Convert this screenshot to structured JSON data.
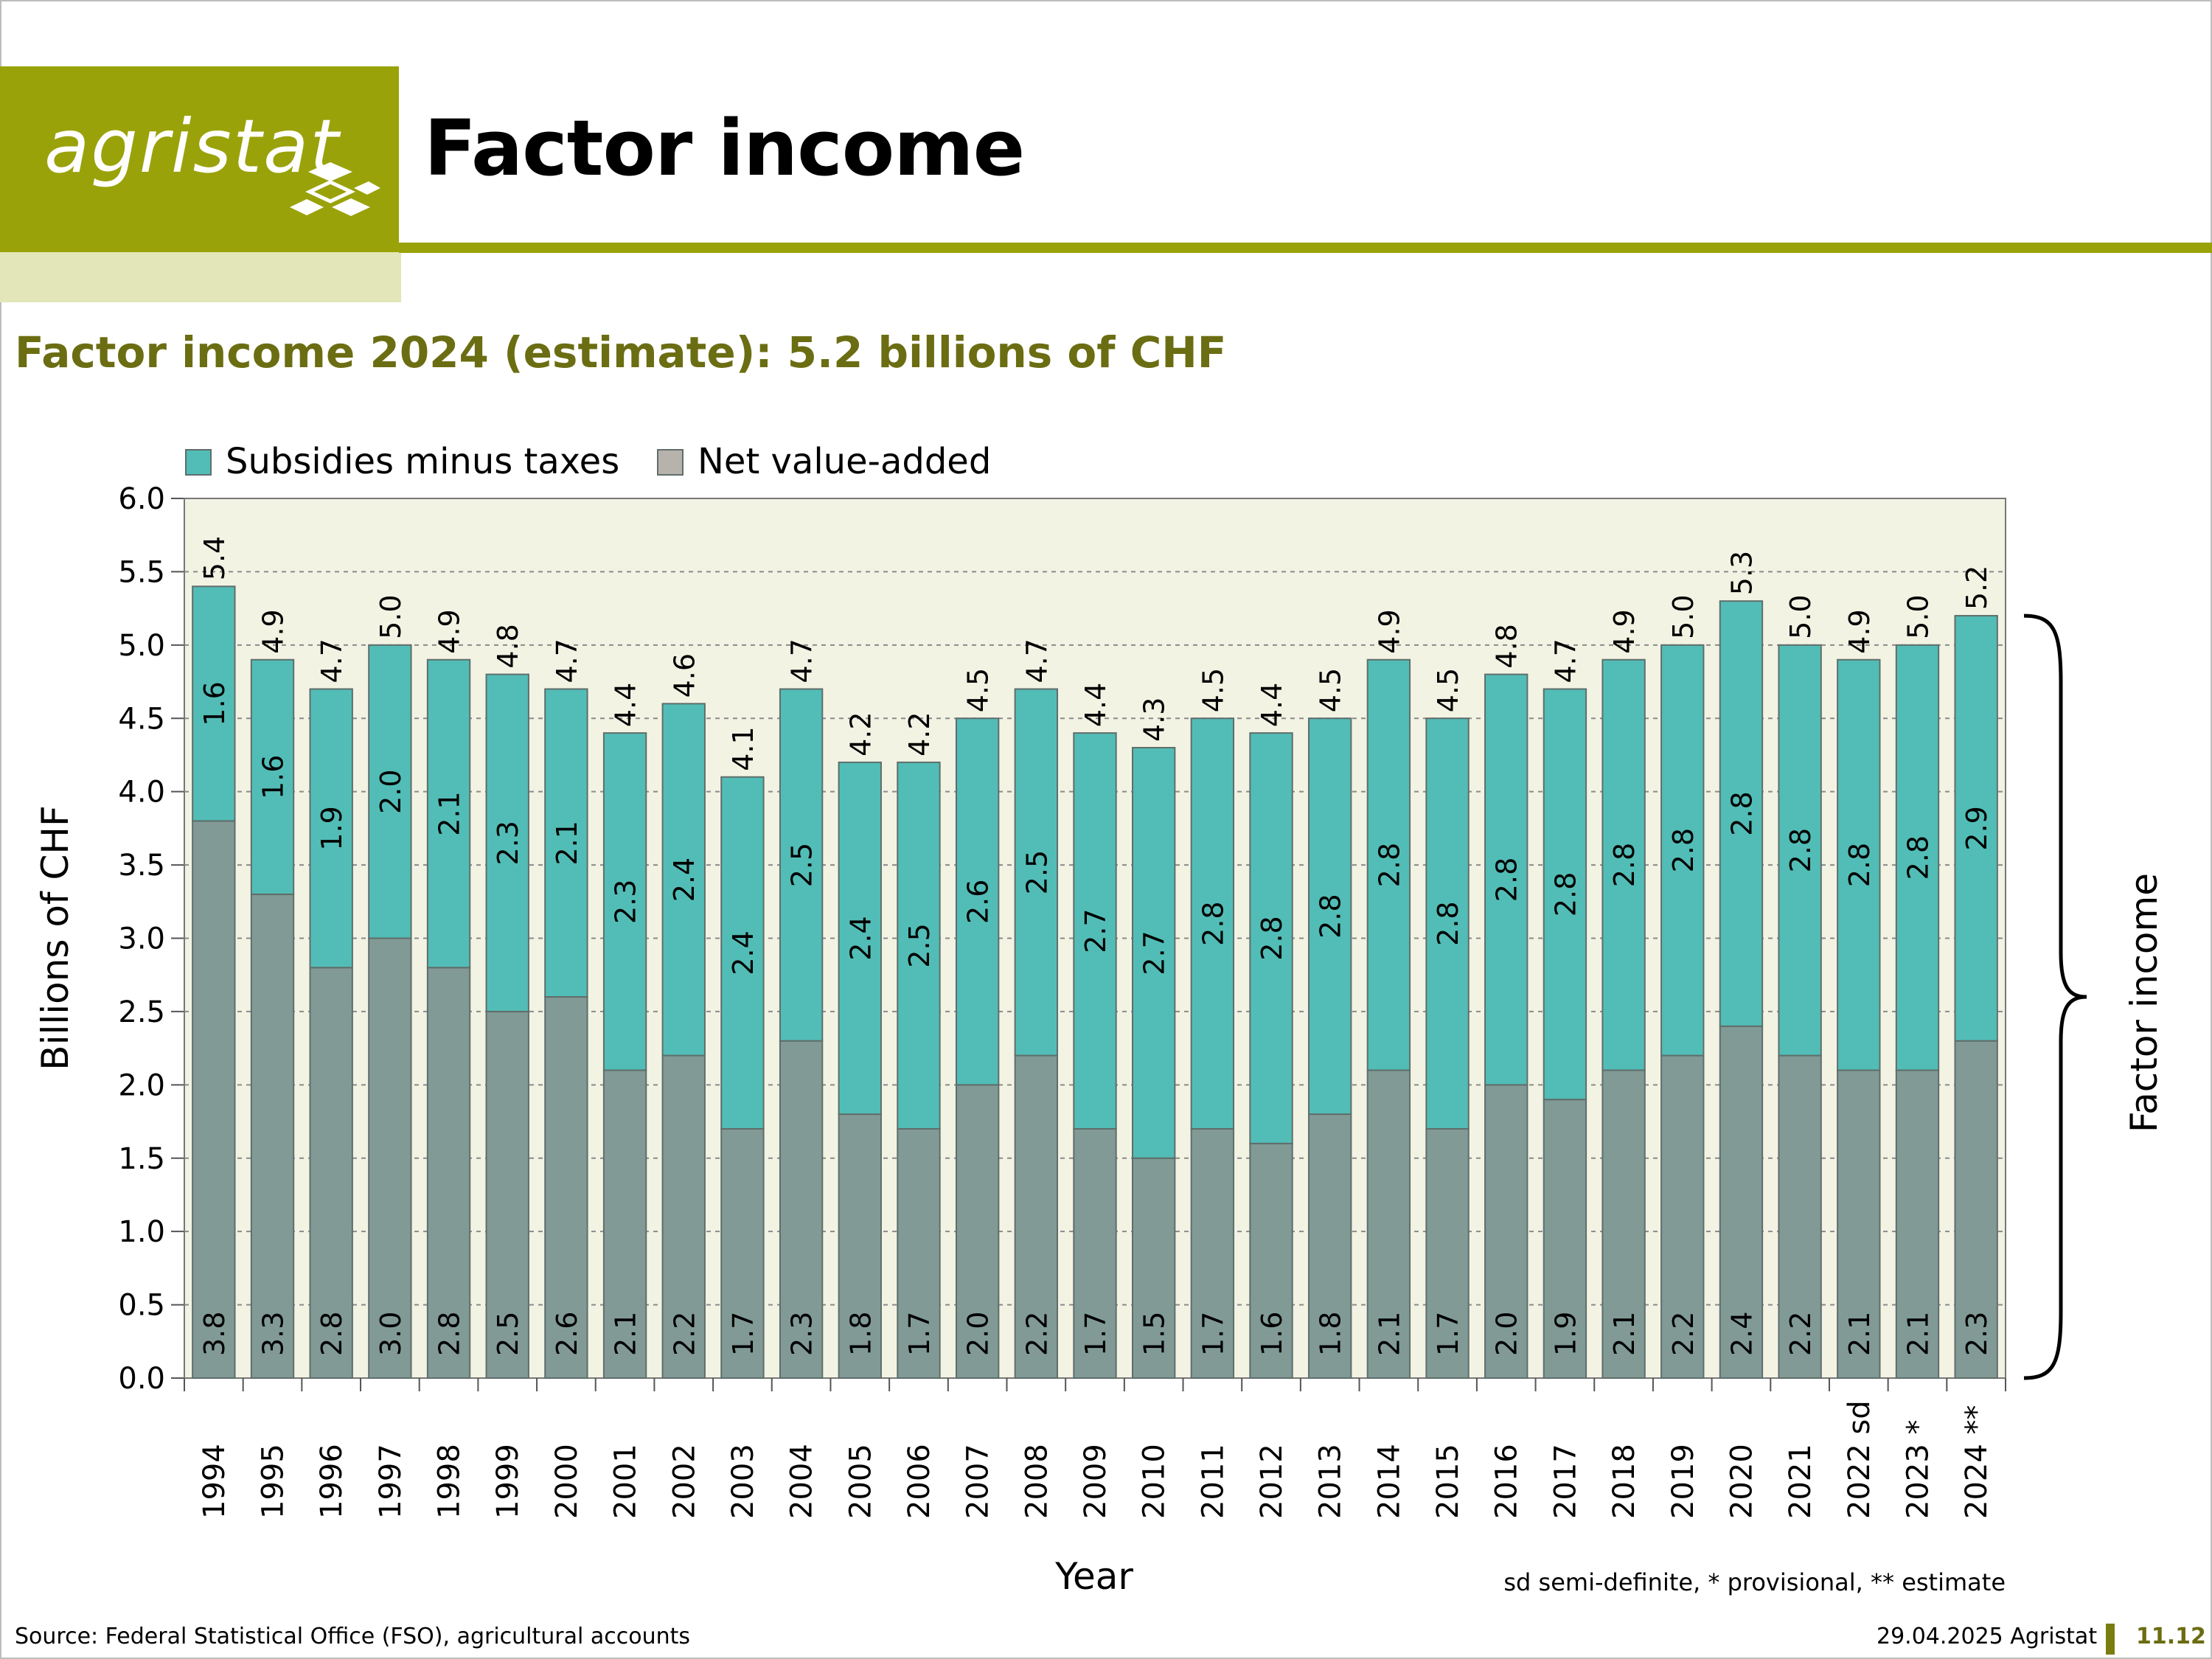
{
  "header": {
    "logo_text": "agristat",
    "title": "Factor income",
    "brand_color": "#9aa20a"
  },
  "subtitle": "Factor income 2024 (estimate): 5.2 billions of CHF",
  "footer": {
    "source": "Source: Federal Statistical Office (FSO), agricultural accounts",
    "date_org": "29.04.2025 Agristat",
    "page": "11.12"
  },
  "chart_data": {
    "type": "bar",
    "stacked": true,
    "categories": [
      "1994",
      "1995",
      "1996",
      "1997",
      "1998",
      "1999",
      "2000",
      "2001",
      "2002",
      "2003",
      "2004",
      "2005",
      "2006",
      "2007",
      "2008",
      "2009",
      "2010",
      "2011",
      "2012",
      "2013",
      "2014",
      "2015",
      "2016",
      "2017",
      "2018",
      "2019",
      "2020",
      "2021",
      "2022 sd",
      "2023 *",
      "2024 **"
    ],
    "series": [
      {
        "name": "Net value-added",
        "color": "#819a96",
        "values": [
          3.8,
          3.3,
          2.8,
          3.0,
          2.8,
          2.5,
          2.6,
          2.1,
          2.2,
          1.7,
          2.3,
          1.8,
          1.7,
          2.0,
          2.2,
          1.7,
          1.5,
          1.7,
          1.6,
          1.8,
          2.1,
          1.7,
          2.0,
          1.9,
          2.1,
          2.2,
          2.4,
          2.2,
          2.1,
          2.1,
          2.3
        ]
      },
      {
        "name": "Subsidies minus taxes",
        "color": "#52bdb6",
        "values": [
          1.6,
          1.6,
          1.9,
          2.0,
          2.1,
          2.3,
          2.1,
          2.3,
          2.4,
          2.4,
          2.5,
          2.4,
          2.5,
          2.6,
          2.5,
          2.7,
          2.7,
          2.8,
          2.8,
          2.8,
          2.8,
          2.8,
          2.8,
          2.8,
          2.8,
          2.8,
          2.8,
          2.8,
          2.8,
          2.8,
          2.9
        ]
      }
    ],
    "totals": [
      5.4,
      4.9,
      4.7,
      5.0,
      4.9,
      4.8,
      4.7,
      4.4,
      4.6,
      4.1,
      4.7,
      4.2,
      4.2,
      4.5,
      4.7,
      4.4,
      4.3,
      4.5,
      4.4,
      4.5,
      4.9,
      4.5,
      4.8,
      4.7,
      4.9,
      5.0,
      5.3,
      5.0,
      4.9,
      5.0,
      5.2
    ],
    "xlabel": "Year",
    "ylabel": "Billions of CHF",
    "ylim": [
      0,
      6.0
    ],
    "yticks": [
      "0.0",
      "0.5",
      "1.0",
      "1.5",
      "2.0",
      "2.5",
      "3.0",
      "3.5",
      "4.0",
      "4.5",
      "5.0",
      "5.5",
      "6.0"
    ],
    "grid": true,
    "legend_position": "top-left",
    "brace_label": "Factor income",
    "footnote": "sd semi-definite, * provisional, ** estimate",
    "plot_background": "#f3f3e4"
  }
}
